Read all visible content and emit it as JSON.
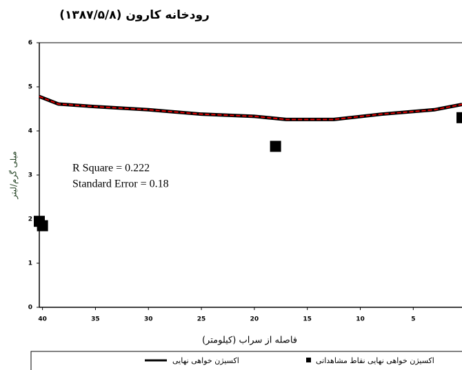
{
  "chart_data": {
    "type": "line",
    "title": "رودخانه کارون (۱۳۸۷/۵/۸)",
    "x_label": "فاصله از سراب (کیلومتر)",
    "y_label": "میلی گرم/لیتر",
    "annotations": [
      "R Square = 0.222",
      "Standard Error = 0.18"
    ],
    "xlim": [
      40.3,
      0.4
    ],
    "xticks": [
      40,
      35,
      30,
      25,
      20,
      15,
      10,
      5
    ],
    "ylim": [
      0,
      6
    ],
    "yticks": [
      0,
      1,
      2,
      3,
      4,
      5,
      6
    ],
    "series": [
      {
        "name": "اکسیژن خواهی نهایی",
        "mark": "line",
        "color": "#000000",
        "dash_color": "#e00000",
        "x": [
          40.3,
          38.5,
          35,
          30,
          25,
          20,
          17,
          12.5,
          8,
          3,
          0.4
        ],
        "values": [
          4.78,
          4.61,
          4.55,
          4.48,
          4.38,
          4.33,
          4.26,
          4.26,
          4.38,
          4.48,
          4.6
        ]
      },
      {
        "name": "اکسیژن خواهی نهایی نقاط مشاهداتی",
        "mark": "point",
        "color": "#000000",
        "x": [
          40.3,
          40,
          18,
          0.4
        ],
        "values": [
          1.95,
          1.85,
          3.65,
          4.3
        ]
      }
    ]
  }
}
